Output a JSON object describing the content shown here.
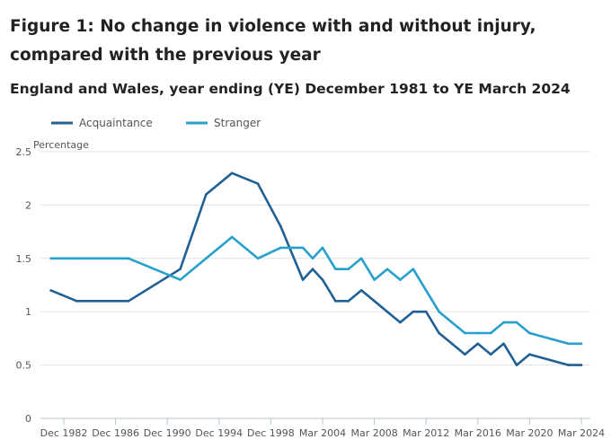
{
  "chart_data": {
    "type": "line",
    "title": "Figure 1: No change in violence with and without injury, compared with the previous year",
    "subtitle": "England and Wales, year ending (YE) December 1981 to YE March 2024",
    "ylabel": "Percentage",
    "ylim": [
      0,
      2.5
    ],
    "yticks": [
      "0",
      "0.5",
      "1",
      "1.5",
      "2",
      "2.5"
    ],
    "xticks": [
      "Dec 1982",
      "Dec 1986",
      "Dec 1990",
      "Dec 1994",
      "Dec 1998",
      "Mar 2004",
      "Mar 2008",
      "Mar 2012",
      "Mar 2016",
      "Mar 2020",
      "Mar 2024"
    ],
    "grid": true,
    "legend": "top-left",
    "x": [
      "Dec 1981",
      "Dec 1983",
      "Dec 1987",
      "Dec 1991",
      "Dec 1993",
      "Dec 1995",
      "Dec 1997",
      "Dec 1999",
      "Mar 2002",
      "Mar 2003",
      "Mar 2004",
      "Mar 2005",
      "Mar 2006",
      "Mar 2007",
      "Mar 2008",
      "Mar 2009",
      "Mar 2010",
      "Mar 2011",
      "Mar 2012",
      "Mar 2013",
      "Mar 2014",
      "Mar 2015",
      "Mar 2016",
      "Mar 2017",
      "Mar 2018",
      "Mar 2019",
      "Mar 2020",
      "Mar 2023",
      "Mar 2024"
    ],
    "series": [
      {
        "name": "Acquaintance",
        "color": "#206095",
        "values": [
          1.2,
          1.1,
          1.1,
          1.4,
          2.1,
          2.3,
          2.2,
          1.8,
          1.3,
          1.4,
          1.3,
          1.1,
          1.1,
          1.2,
          1.1,
          1.0,
          0.9,
          1.0,
          1.0,
          0.8,
          0.7,
          0.6,
          0.7,
          0.6,
          0.7,
          0.5,
          0.6,
          0.5,
          0.5
        ]
      },
      {
        "name": "Stranger",
        "color": "#27a0cc",
        "values": [
          1.5,
          1.5,
          1.5,
          1.3,
          1.5,
          1.7,
          1.5,
          1.6,
          1.6,
          1.5,
          1.6,
          1.4,
          1.4,
          1.5,
          1.3,
          1.4,
          1.3,
          1.4,
          1.2,
          1.0,
          0.9,
          0.8,
          0.8,
          0.8,
          0.9,
          0.9,
          0.8,
          0.7,
          0.7
        ]
      }
    ]
  }
}
